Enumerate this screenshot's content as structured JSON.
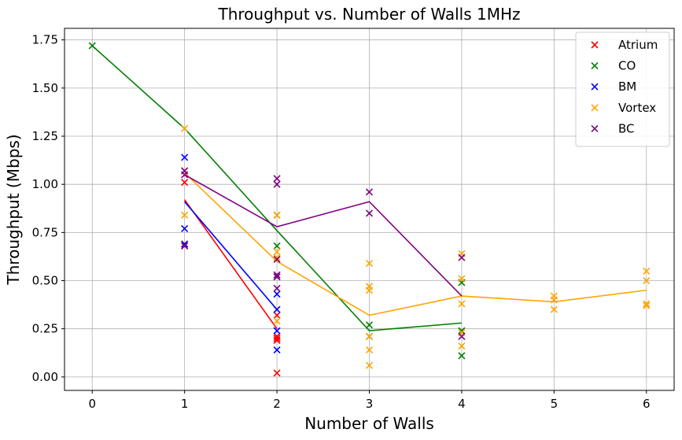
{
  "chart_data": {
    "type": "scatter",
    "title": "Throughput vs. Number of Walls 1MHz",
    "xlabel": "Number of Walls",
    "ylabel": "Throughput (Mbps)",
    "xlim": [
      -0.3,
      6.3
    ],
    "ylim": [
      -0.07,
      1.81
    ],
    "x_ticks": [
      "0",
      "1",
      "2",
      "3",
      "4",
      "5",
      "6"
    ],
    "y_ticks": [
      "0.00",
      "0.25",
      "0.50",
      "0.75",
      "1.00",
      "1.25",
      "1.50",
      "1.75"
    ],
    "grid": true,
    "legend_position": "top-right",
    "series": [
      {
        "name": "Atrium",
        "color": "#ff0000",
        "points": [
          [
            1,
            1.07
          ],
          [
            1,
            1.01
          ],
          [
            1,
            0.69
          ],
          [
            1,
            0.68
          ],
          [
            2,
            0.32
          ],
          [
            2,
            0.21
          ],
          [
            2,
            0.2
          ],
          [
            2,
            0.19
          ],
          [
            2,
            0.02
          ]
        ],
        "mean_line": [
          [
            1,
            0.92
          ],
          [
            2,
            0.25
          ]
        ]
      },
      {
        "name": "CO",
        "color": "#008000",
        "points": [
          [
            0,
            1.72
          ],
          [
            2,
            0.84
          ],
          [
            2,
            0.68
          ],
          [
            3,
            0.27
          ],
          [
            3,
            0.21
          ],
          [
            4,
            0.49
          ],
          [
            4,
            0.24
          ],
          [
            4,
            0.11
          ]
        ],
        "mean_line": [
          [
            0,
            1.72
          ],
          [
            1,
            1.29
          ],
          [
            2,
            0.76
          ],
          [
            3,
            0.24
          ],
          [
            4,
            0.28
          ]
        ]
      },
      {
        "name": "BM",
        "color": "#0000ff",
        "points": [
          [
            1,
            1.14
          ],
          [
            1,
            0.77
          ],
          [
            1,
            0.69
          ],
          [
            2,
            0.52
          ],
          [
            2,
            0.43
          ],
          [
            2,
            0.35
          ],
          [
            2,
            0.24
          ],
          [
            2,
            0.14
          ]
        ],
        "mean_line": [
          [
            1,
            0.91
          ],
          [
            2,
            0.35
          ]
        ]
      },
      {
        "name": "Vortex",
        "color": "#ffa500",
        "points": [
          [
            1,
            1.29
          ],
          [
            1,
            0.84
          ],
          [
            2,
            0.84
          ],
          [
            2,
            0.65
          ],
          [
            2,
            0.62
          ],
          [
            2,
            0.29
          ],
          [
            3,
            0.59
          ],
          [
            3,
            0.47
          ],
          [
            3,
            0.45
          ],
          [
            3,
            0.21
          ],
          [
            3,
            0.14
          ],
          [
            3,
            0.06
          ],
          [
            4,
            0.64
          ],
          [
            4,
            0.51
          ],
          [
            4,
            0.38
          ],
          [
            4,
            0.23
          ],
          [
            4,
            0.16
          ],
          [
            5,
            0.42
          ],
          [
            5,
            0.4
          ],
          [
            5,
            0.35
          ],
          [
            6,
            0.55
          ],
          [
            6,
            0.5
          ],
          [
            6,
            0.38
          ],
          [
            6,
            0.37
          ]
        ],
        "mean_line": [
          [
            1,
            1.06
          ],
          [
            2,
            0.6
          ],
          [
            3,
            0.32
          ],
          [
            4,
            0.42
          ],
          [
            5,
            0.39
          ],
          [
            6,
            0.45
          ]
        ]
      },
      {
        "name": "BC",
        "color": "#800080",
        "points": [
          [
            1,
            1.07
          ],
          [
            1,
            1.05
          ],
          [
            1,
            0.68
          ],
          [
            2,
            1.03
          ],
          [
            2,
            1.0
          ],
          [
            2,
            0.61
          ],
          [
            2,
            0.53
          ],
          [
            2,
            0.52
          ],
          [
            2,
            0.46
          ],
          [
            3,
            0.96
          ],
          [
            3,
            0.85
          ],
          [
            4,
            0.62
          ],
          [
            4,
            0.21
          ]
        ],
        "mean_line": [
          [
            1,
            1.05
          ],
          [
            2,
            0.78
          ],
          [
            3,
            0.91
          ],
          [
            4,
            0.42
          ]
        ]
      }
    ]
  }
}
